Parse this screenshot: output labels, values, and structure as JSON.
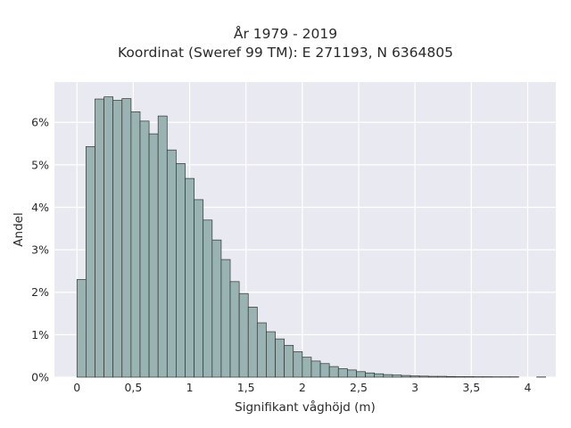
{
  "title_line1": "År 1979 - 2019",
  "title_line2": "Koordinat (Sweref 99 TM): E 271193, N 6364805",
  "chart_data": {
    "type": "bar",
    "subtype": "histogram",
    "xlabel": "Signifikant våghöjd (m)",
    "ylabel": "Andel",
    "xlim": [
      -0.2,
      4.25
    ],
    "ylim": [
      0,
      6.95
    ],
    "x_ticks": [
      0,
      0.5,
      1,
      1.5,
      2,
      2.5,
      3,
      3.5,
      4
    ],
    "x_tick_labels": [
      "0",
      "0,5",
      "1",
      "1,5",
      "2",
      "2,5",
      "3",
      "3,5",
      "4"
    ],
    "y_ticks": [
      0,
      1,
      2,
      3,
      4,
      5,
      6
    ],
    "y_tick_labels": [
      "0%",
      "1%",
      "2%",
      "3%",
      "4%",
      "5%",
      "6%"
    ],
    "grid": true,
    "background": "#e9e9f2",
    "bar_color": "#98b3b2",
    "bar_edge_color": "#333333",
    "bin_width": 0.08,
    "bin_start": 0.0,
    "values": [
      2.3,
      5.43,
      6.55,
      6.6,
      6.52,
      6.56,
      6.25,
      6.03,
      5.73,
      6.15,
      5.35,
      5.03,
      4.68,
      4.18,
      3.7,
      3.23,
      2.77,
      2.25,
      1.97,
      1.65,
      1.28,
      1.07,
      0.9,
      0.75,
      0.6,
      0.47,
      0.38,
      0.32,
      0.25,
      0.2,
      0.17,
      0.13,
      0.1,
      0.08,
      0.06,
      0.05,
      0.04,
      0.03,
      0.025,
      0.02,
      0.02,
      0.015,
      0.012,
      0.012,
      0.01,
      0.01,
      0.008,
      0.008,
      0.008,
      0.0,
      0.0,
      0.005
    ]
  }
}
